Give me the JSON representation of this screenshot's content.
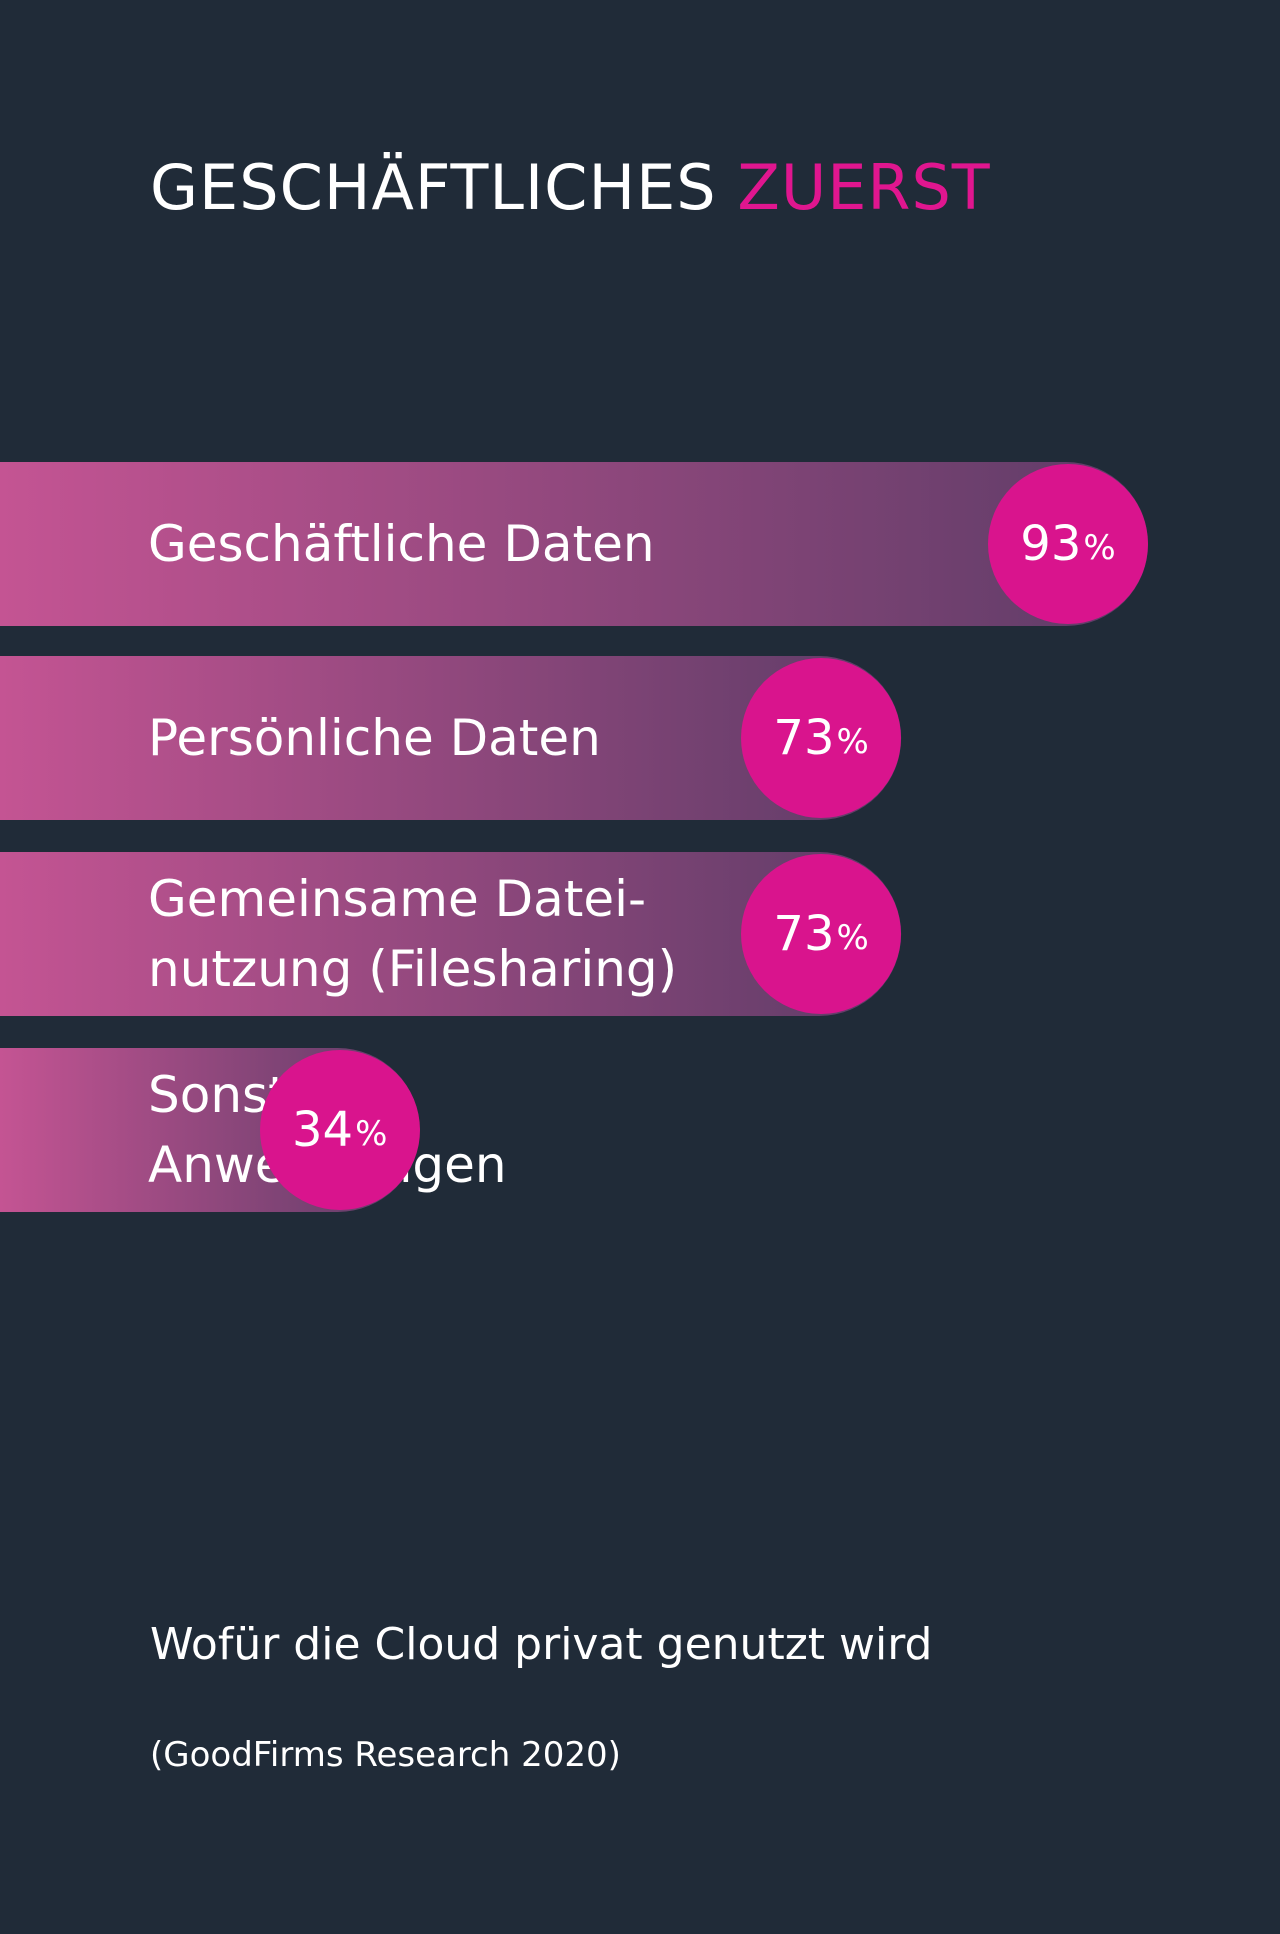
{
  "title": {
    "main": "GESCHÄFTLICHES",
    "accent": "ZUERST"
  },
  "subtitle": "Wofür die Cloud privat genutzt wird",
  "source": "(GoodFirms Research 2020)",
  "colors": {
    "background": "#202b38",
    "accent": "#e0168f",
    "bubble": "#d9148d",
    "bar_start": "#c45493",
    "bar_end": "#5d3c67"
  },
  "chart_data": {
    "type": "bar",
    "orientation": "horizontal",
    "categories": [
      "Geschäftliche Daten",
      "Persönliche Daten",
      "Gemeinsame Datei-\nnutzung (Filesharing)",
      "Sonstige\nAnwendungen"
    ],
    "values": [
      93,
      73,
      73,
      34
    ],
    "value_labels": [
      "93",
      "73",
      "73",
      "34"
    ],
    "unit": "%",
    "title": "GESCHÄFTLICHES ZUERST",
    "xlabel": "",
    "ylabel": "",
    "xlim": [
      0,
      100
    ],
    "grid": false,
    "legend": "none"
  }
}
